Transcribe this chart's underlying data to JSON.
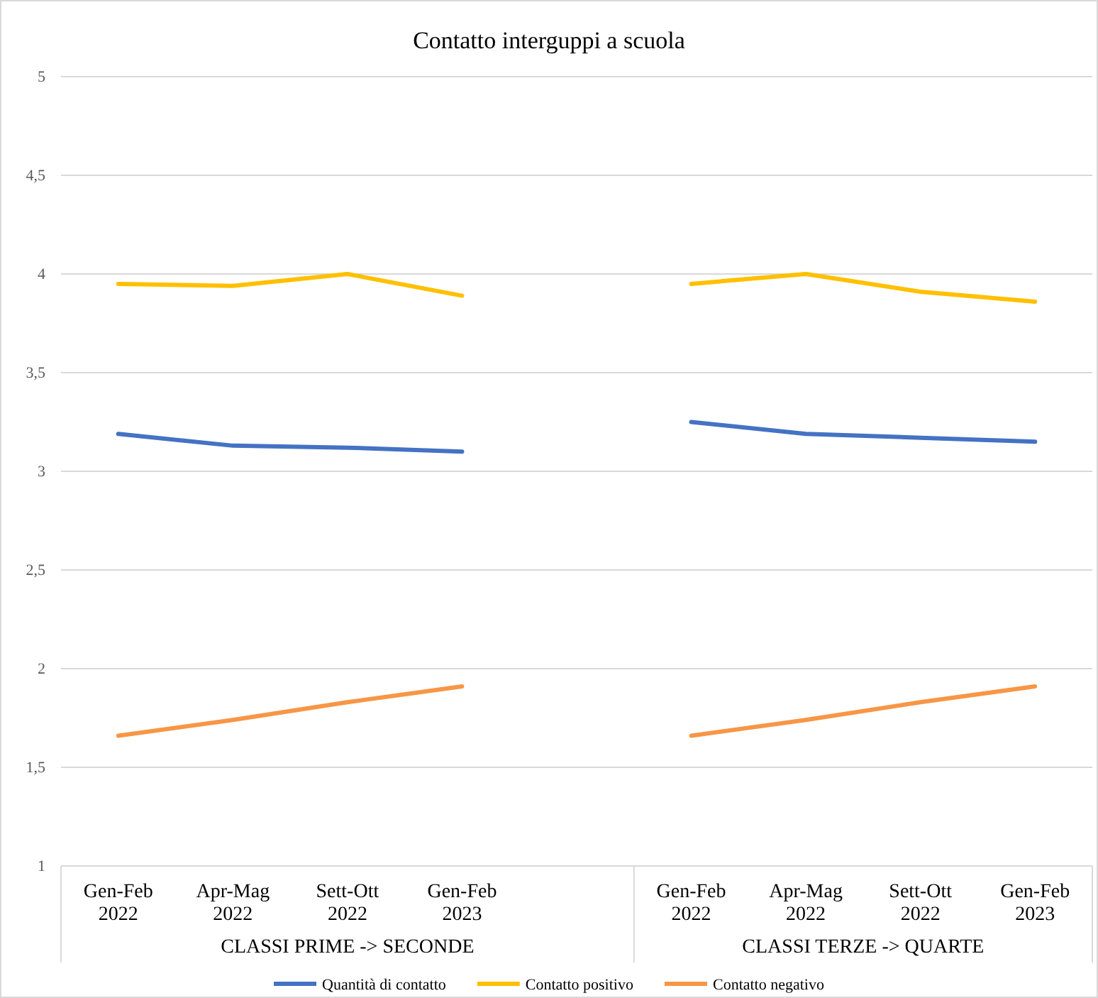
{
  "chart_data": {
    "type": "line",
    "title": "Contatto interguppi a scuola",
    "categories": [
      "Gen-Feb 2022",
      "Apr-Mag 2022",
      "Sett-Ott 2022",
      "Gen-Feb 2023",
      null,
      "Gen-Feb 2022",
      "Apr-Mag 2022",
      "Sett-Ott 2022",
      "Gen-Feb 2023"
    ],
    "series": [
      {
        "name": "Quantità di contatto",
        "color": "#4472c4",
        "values": [
          3.19,
          3.13,
          3.12,
          3.1,
          null,
          3.25,
          3.19,
          3.17,
          3.15
        ]
      },
      {
        "name": "Contatto positivo",
        "color": "#ffc000",
        "values": [
          3.95,
          3.94,
          4.0,
          3.89,
          null,
          3.95,
          4.0,
          3.91,
          3.86
        ]
      },
      {
        "name": "Contatto negativo",
        "color": "#f79646",
        "values": [
          1.66,
          1.74,
          1.83,
          1.91,
          null,
          1.66,
          1.74,
          1.83,
          1.91
        ]
      }
    ],
    "ylim": [
      1,
      5
    ],
    "yticks": [
      1,
      {
        "value": 1.5,
        "label": "1,5"
      },
      2,
      {
        "value": 2.5,
        "label": "2,5"
      },
      3,
      {
        "value": 3.5,
        "label": "3,5"
      },
      4,
      {
        "value": 4.5,
        "label": "4,5"
      },
      5
    ],
    "grid": "y",
    "legend": "bottom",
    "marker": "none",
    "line_style": "solid",
    "annotations": [
      "CLASSI PRIME -> SECONDE",
      "CLASSI TERZE -> QUARTE"
    ]
  }
}
